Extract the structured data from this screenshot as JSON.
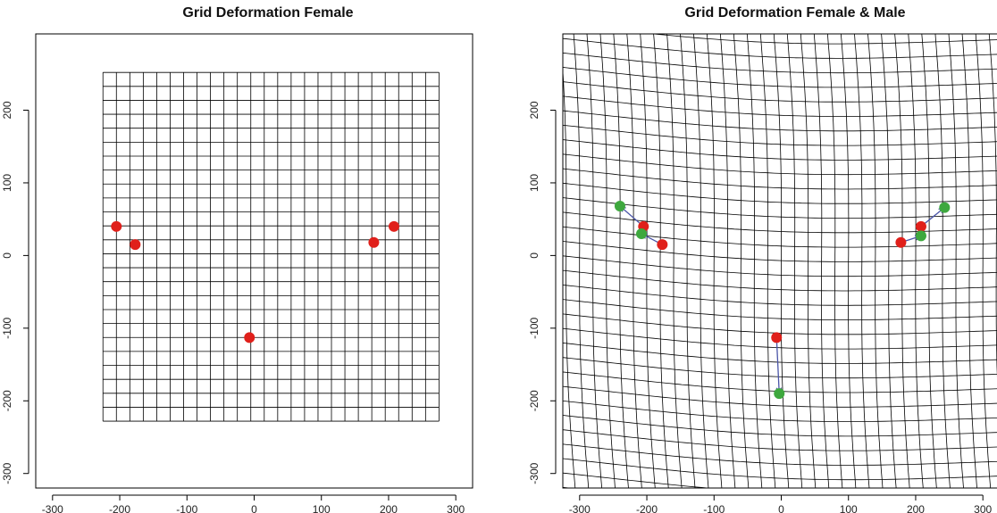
{
  "chart_data": [
    {
      "type": "scatter",
      "title": "Grid Deformation Female",
      "xlim": [
        -325,
        325
      ],
      "ylim": [
        -320,
        305
      ],
      "x_ticks": [
        -300,
        -200,
        -100,
        0,
        100,
        200,
        300
      ],
      "y_ticks": [
        -300,
        -200,
        -100,
        0,
        100,
        200
      ],
      "grid_extent": {
        "x": [
          -225,
          275
        ],
        "y": [
          -228,
          252
        ]
      },
      "grid_divisions": 25,
      "series": [
        {
          "role": "landmarks",
          "color": "#e0201b",
          "points": [
            {
              "x": -205,
              "y": 40
            },
            {
              "x": -177,
              "y": 15
            },
            {
              "x": -7,
              "y": -113
            },
            {
              "x": 178,
              "y": 18
            },
            {
              "x": 208,
              "y": 40
            }
          ]
        }
      ]
    },
    {
      "type": "scatter",
      "title": "Grid Deformation Female & Male",
      "xlim": [
        -325,
        325
      ],
      "ylim": [
        -320,
        305
      ],
      "x_ticks": [
        -300,
        -200,
        -100,
        0,
        100,
        200,
        300
      ],
      "y_ticks": [
        -300,
        -200,
        -100,
        0,
        100,
        200
      ],
      "series": [
        {
          "role": "female",
          "color": "#e0201b",
          "points": [
            {
              "x": -205,
              "y": 40
            },
            {
              "x": -177,
              "y": 15
            },
            {
              "x": -7,
              "y": -113
            },
            {
              "x": 178,
              "y": 18
            },
            {
              "x": 208,
              "y": 40
            }
          ]
        },
        {
          "role": "male",
          "color": "#3ea83e",
          "points": [
            {
              "x": -240,
              "y": 68
            },
            {
              "x": -208,
              "y": 30
            },
            {
              "x": -3,
              "y": -190
            },
            {
              "x": 208,
              "y": 27
            },
            {
              "x": 243,
              "y": 66
            }
          ]
        }
      ],
      "arrow_color": "#4a55a8"
    }
  ]
}
